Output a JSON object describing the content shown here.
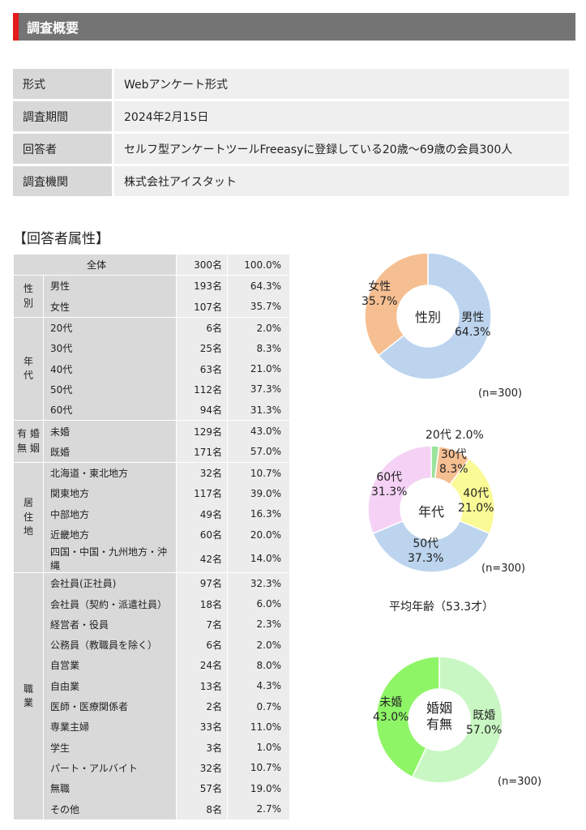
{
  "header": {
    "title": "調査概要"
  },
  "survey": [
    {
      "key": "形式",
      "value": "Webアンケート形式"
    },
    {
      "key": "調査期間",
      "value": "2024年2月15日"
    },
    {
      "key": "回答者",
      "value": "セルフ型アンケートツールFreeasyに登録している20歳～69歳の会員300人"
    },
    {
      "key": "調査機関",
      "value": "株式会社アイスタット"
    }
  ],
  "attributes": {
    "title": "【回答者属性】",
    "total": {
      "label": "全体",
      "n": "300名",
      "pct": "100.0%"
    },
    "groups": [
      {
        "category": "性\n別",
        "rows": [
          {
            "label": "男性",
            "n": "193名",
            "pct": "64.3%"
          },
          {
            "label": "女性",
            "n": "107名",
            "pct": "35.7%"
          }
        ]
      },
      {
        "category": "年\n代",
        "rows": [
          {
            "label": "20代",
            "n": "6名",
            "pct": "2.0%"
          },
          {
            "label": "30代",
            "n": "25名",
            "pct": "8.3%"
          },
          {
            "label": "40代",
            "n": "63名",
            "pct": "21.0%"
          },
          {
            "label": "50代",
            "n": "112名",
            "pct": "37.3%"
          },
          {
            "label": "60代",
            "n": "94名",
            "pct": "31.3%"
          }
        ]
      },
      {
        "category": "有 婚\n無 姻",
        "rows": [
          {
            "label": "未婚",
            "n": "129名",
            "pct": "43.0%"
          },
          {
            "label": "既婚",
            "n": "171名",
            "pct": "57.0%"
          }
        ]
      },
      {
        "category": "居\n住\n地",
        "rows": [
          {
            "label": "北海道・東北地方",
            "n": "32名",
            "pct": "10.7%"
          },
          {
            "label": "関東地方",
            "n": "117名",
            "pct": "39.0%"
          },
          {
            "label": "中部地方",
            "n": "49名",
            "pct": "16.3%"
          },
          {
            "label": "近畿地方",
            "n": "60名",
            "pct": "20.0%"
          },
          {
            "label": "四国・中国・九州地方・沖縄",
            "n": "42名",
            "pct": "14.0%"
          }
        ]
      },
      {
        "category": "職\n業",
        "rows": [
          {
            "label": "会社員(正社員)",
            "n": "97名",
            "pct": "32.3%"
          },
          {
            "label": "会社員（契約・派遣社員）",
            "n": "18名",
            "pct": "6.0%"
          },
          {
            "label": "経営者・役員",
            "n": "7名",
            "pct": "2.3%"
          },
          {
            "label": "公務員（教職員を除く）",
            "n": "6名",
            "pct": "2.0%"
          },
          {
            "label": "自営業",
            "n": "24名",
            "pct": "8.0%"
          },
          {
            "label": "自由業",
            "n": "13名",
            "pct": "4.3%"
          },
          {
            "label": "医師・医療関係者",
            "n": "2名",
            "pct": "0.7%"
          },
          {
            "label": "専業主婦",
            "n": "33名",
            "pct": "11.0%"
          },
          {
            "label": "学生",
            "n": "3名",
            "pct": "1.0%"
          },
          {
            "label": "パート・アルバイト",
            "n": "32名",
            "pct": "10.7%"
          },
          {
            "label": "無職",
            "n": "57名",
            "pct": "19.0%"
          },
          {
            "label": "その他",
            "n": "8名",
            "pct": "2.7%"
          }
        ]
      }
    ]
  },
  "chart_data": [
    {
      "type": "pie",
      "center_label": "性別",
      "note": "(n=300)",
      "slices": [
        {
          "name": "男性",
          "value": 64.3,
          "label": "64.3%",
          "color": "#bcd4ee"
        },
        {
          "name": "女性",
          "value": 35.7,
          "label": "35.7%",
          "color": "#f6bf92"
        }
      ]
    },
    {
      "type": "pie",
      "center_label": "年代",
      "note": "(n=300)",
      "subtitle": "平均年齢（53.3才）",
      "slices": [
        {
          "name": "20代",
          "value": 2.0,
          "label": "2.0%",
          "color": "#9be39b"
        },
        {
          "name": "30代",
          "value": 8.3,
          "label": "8.3%",
          "color": "#f6bf92"
        },
        {
          "name": "40代",
          "value": 21.0,
          "label": "21.0%",
          "color": "#fafa96"
        },
        {
          "name": "50代",
          "value": 37.3,
          "label": "37.3%",
          "color": "#bcd4ee"
        },
        {
          "name": "60代",
          "value": 31.3,
          "label": "31.3%",
          "color": "#f5d2f5"
        }
      ]
    },
    {
      "type": "pie",
      "center_label": "婚姻\n有無",
      "note": "(n=300)",
      "slices": [
        {
          "name": "既婚",
          "value": 57.0,
          "label": "57.0%",
          "color": "#c9f7c3"
        },
        {
          "name": "未婚",
          "value": 43.0,
          "label": "43.0%",
          "color": "#8ef566"
        }
      ]
    }
  ]
}
